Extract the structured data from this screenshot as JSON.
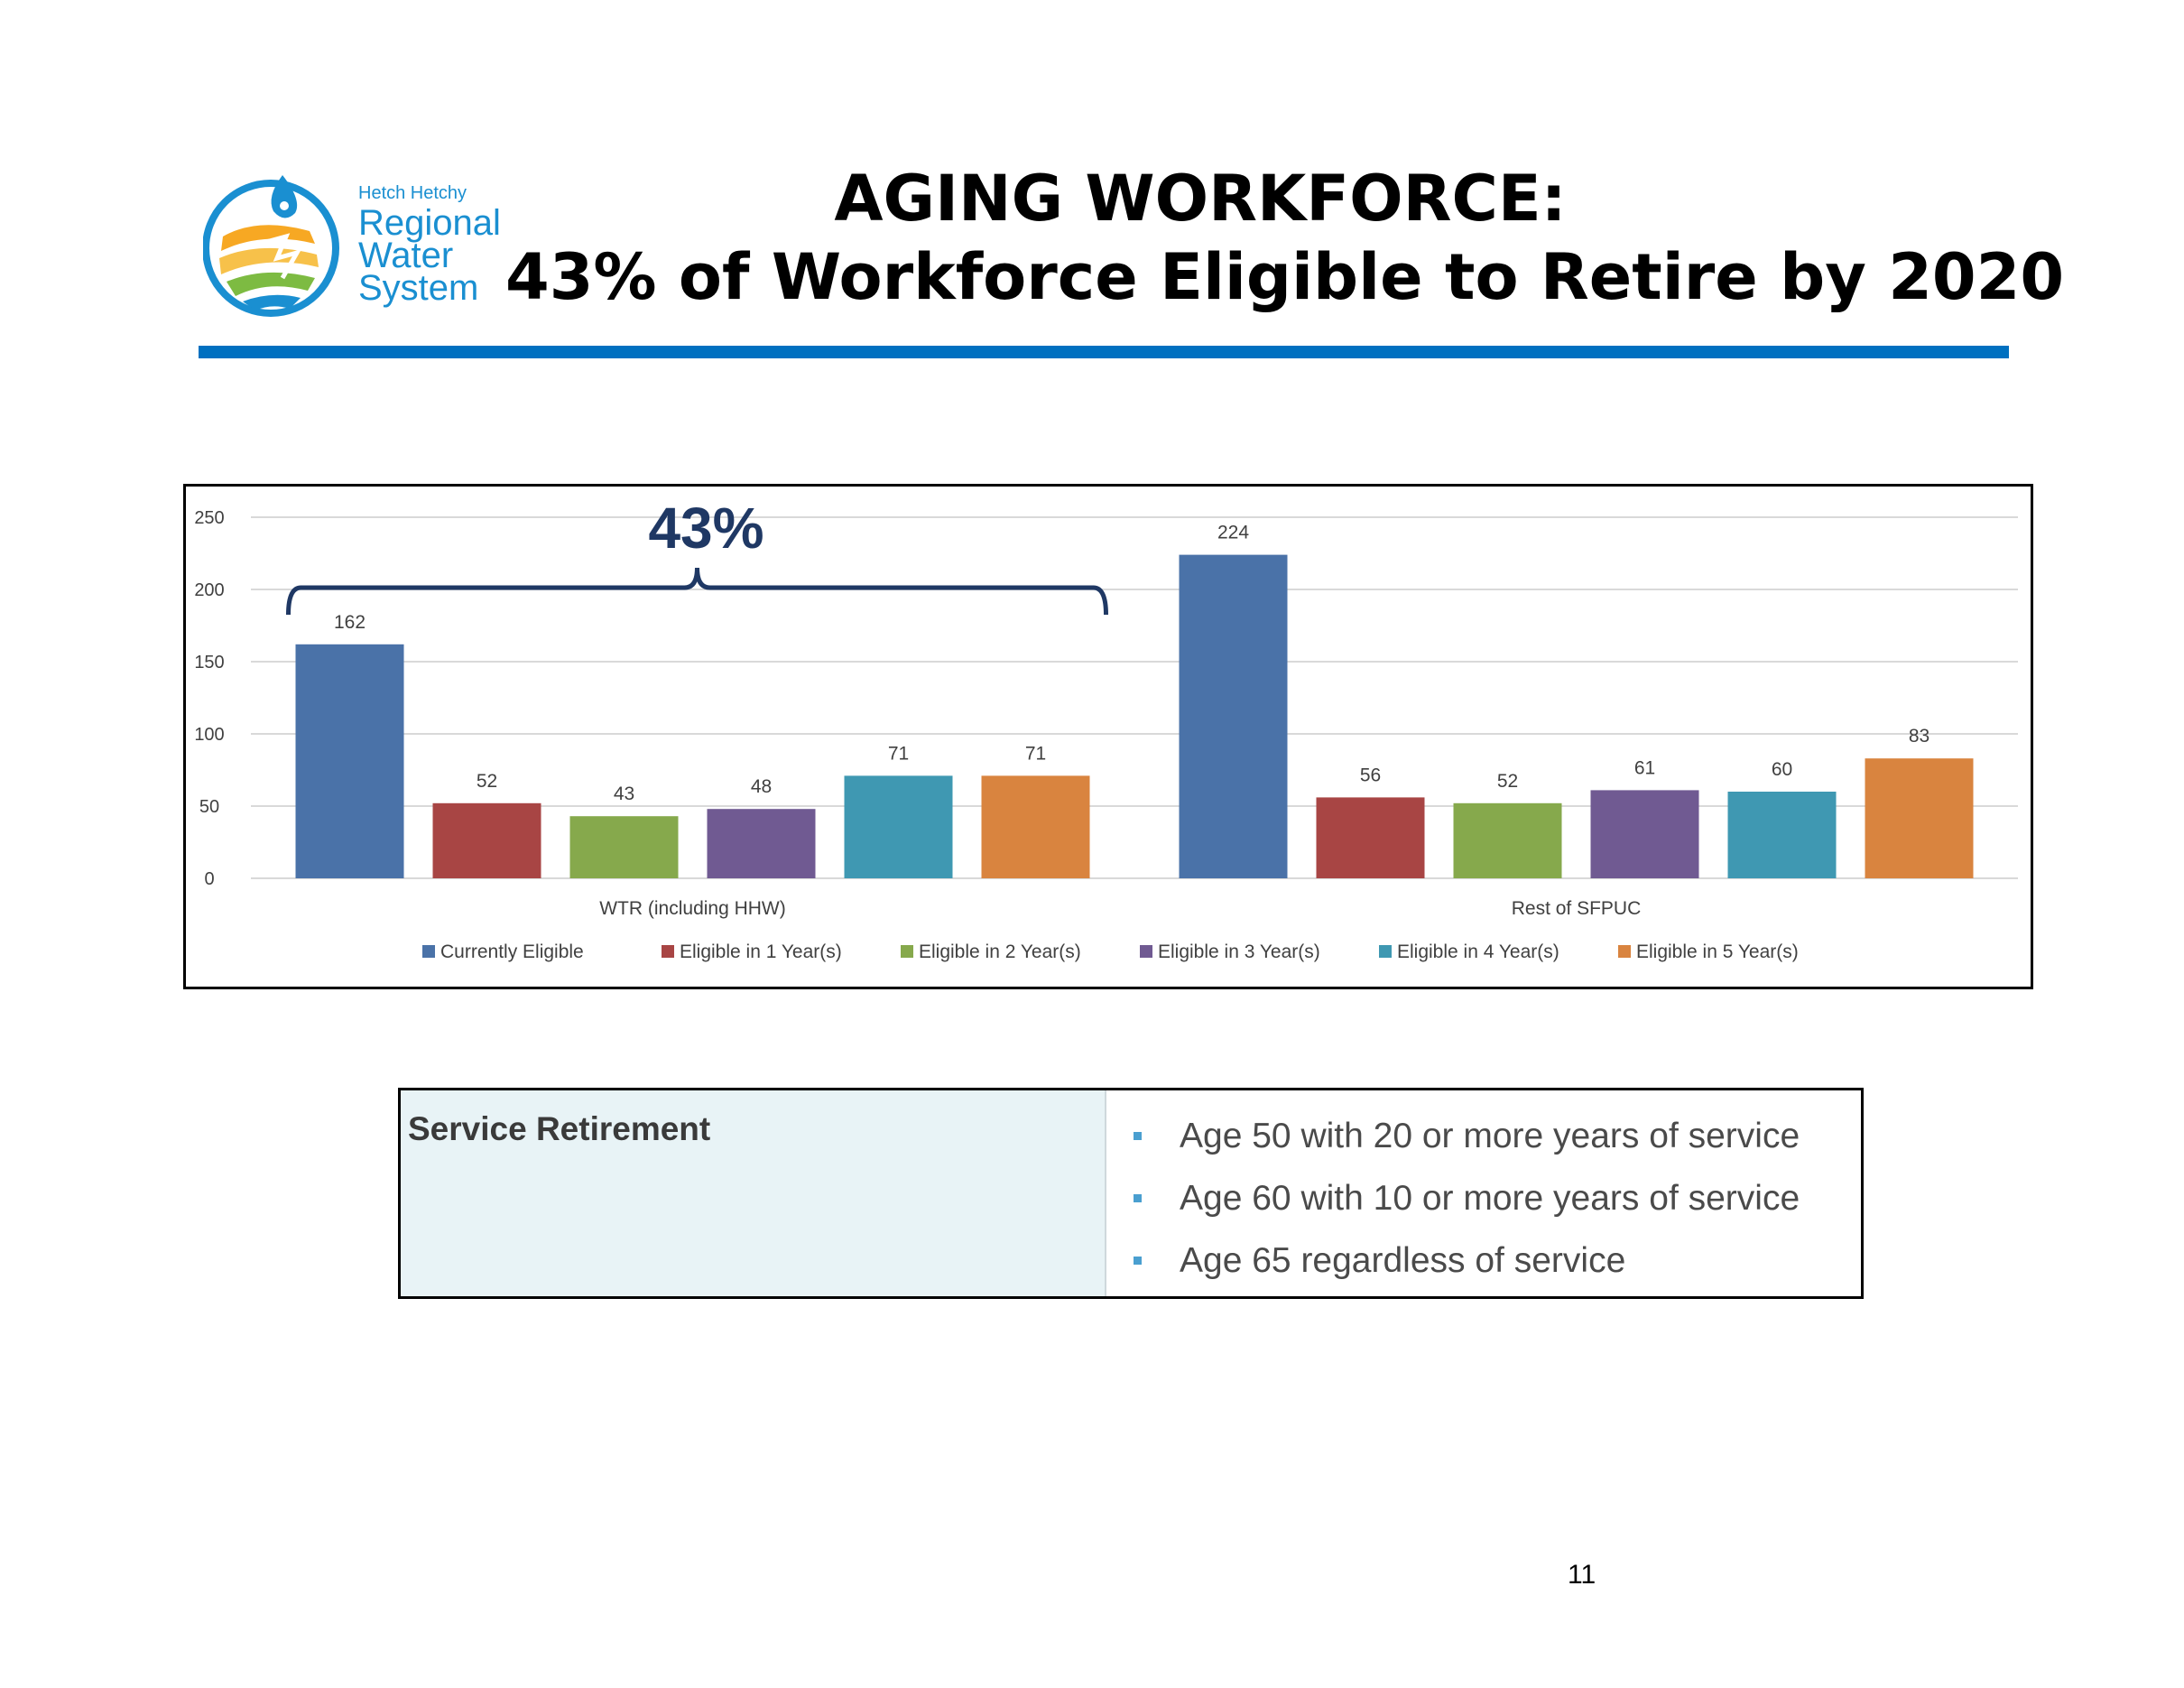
{
  "logo": {
    "line1": "Hetch Hetchy",
    "line2": "Regional",
    "line3": "Water",
    "line4": "System",
    "icon": "water-drop-logo-icon"
  },
  "title": {
    "line1": "AGING WORKFORCE:",
    "line2": "43% of Workforce Eligible to Retire by 2020"
  },
  "colors": {
    "rule": "#0070c0",
    "brace": "#1f3864",
    "logo_blue": "#1a8fd1"
  },
  "chart_data": {
    "type": "bar",
    "categories": [
      "WTR (including HHW)",
      "Rest of SFPUC"
    ],
    "series": [
      {
        "name": "Currently Eligible",
        "color": "#4a72a8",
        "values": [
          162,
          224
        ]
      },
      {
        "name": "Eligible in 1 Year(s)",
        "color": "#a84544",
        "values": [
          52,
          56
        ]
      },
      {
        "name": "Eligible in 2 Year(s)",
        "color": "#86a94c",
        "values": [
          43,
          52
        ]
      },
      {
        "name": "Eligible in 3 Year(s)",
        "color": "#705a92",
        "values": [
          48,
          61
        ]
      },
      {
        "name": "Eligible in 4 Year(s)",
        "color": "#3f98b2",
        "values": [
          71,
          60
        ]
      },
      {
        "name": "Eligible in 5 Year(s)",
        "color": "#d9843f",
        "values": [
          71,
          83
        ]
      }
    ],
    "ylim": [
      0,
      250
    ],
    "yticks": [
      0,
      50,
      100,
      150,
      200,
      250
    ],
    "grid": true,
    "legend": "bottom",
    "annotation": "43%"
  },
  "retirement": {
    "title": "Service Retirement",
    "rules": [
      "Age 50 with 20 or more years of service",
      "Age 60 with 10 or more years of service",
      "Age 65 regardless of service"
    ],
    "bullet_color": "#4a9fd0"
  },
  "page_number": "11"
}
